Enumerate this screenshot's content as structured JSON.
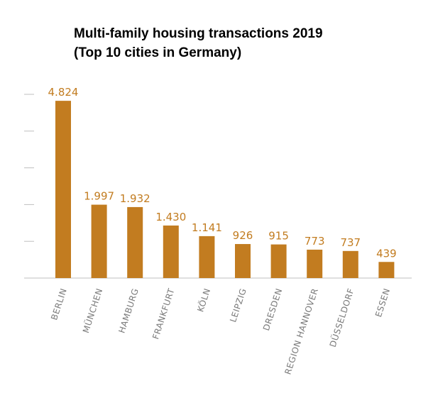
{
  "chart_data": {
    "type": "bar",
    "title": [
      "Multi-family housing transactions 2019",
      "(Top 10 cities in Germany)"
    ],
    "categories": [
      "BERLIN",
      "MÜNCHEN",
      "HAMBURG",
      "FRANKFURT",
      "KÖLN",
      "LEIPZIG",
      "DRESDEN",
      "REGION HANNOVER",
      "DÜSSELDORF",
      "ESSEN"
    ],
    "values": [
      4824,
      1997,
      1932,
      1430,
      1141,
      926,
      915,
      773,
      737,
      439
    ],
    "value_labels": [
      "4.824",
      "1.997",
      "1.932",
      "1.430",
      "1.141",
      "926",
      "915",
      "773",
      "737",
      "439"
    ],
    "ylim": [
      0,
      5000
    ],
    "y_ticks": [
      0,
      1000,
      2000,
      3000,
      4000,
      5000
    ],
    "y_tick_labels_shown": false,
    "grid": false,
    "bar_color": "#c27c20",
    "axis_color": "#bfbfbf",
    "label_color": "#7a7a7a"
  }
}
